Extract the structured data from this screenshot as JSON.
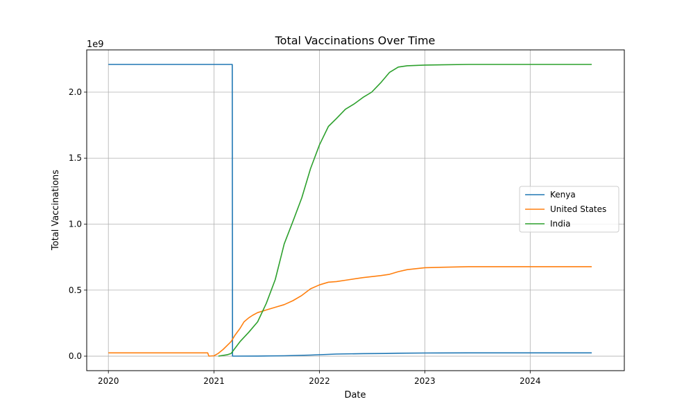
{
  "chart_data": {
    "type": "line",
    "title": "Total Vaccinations Over Time",
    "xlabel": "Date",
    "ylabel": "Total Vaccinations",
    "y_offset_text": "1e9",
    "x_ticks": [
      "2020",
      "2021",
      "2022",
      "2023",
      "2024"
    ],
    "x_tick_values": [
      "2020-01-01",
      "2021-01-01",
      "2022-01-01",
      "2023-01-01",
      "2024-01-01"
    ],
    "y_ticks": [
      "0.0",
      "0.5",
      "1.0",
      "1.5",
      "2.0"
    ],
    "y_tick_values": [
      0,
      0.5,
      1.0,
      1.5,
      2.0
    ],
    "xlim": [
      "2019-10-18",
      "2024-11-22"
    ],
    "ylim": [
      -0.11,
      2.32
    ],
    "y_scale": "1e9",
    "grid": true,
    "legend": "center-right",
    "series": [
      {
        "name": "Kenya",
        "color": "#1f77b4",
        "points": [
          [
            "2020-01-01",
            2.21
          ],
          [
            "2021-03-05",
            2.21
          ],
          [
            "2021-03-06",
            0.0
          ],
          [
            "2021-06-01",
            0.001
          ],
          [
            "2021-09-01",
            0.003
          ],
          [
            "2021-12-01",
            0.008
          ],
          [
            "2022-03-01",
            0.016
          ],
          [
            "2022-06-01",
            0.019
          ],
          [
            "2022-08-20",
            0.02
          ],
          [
            "2022-10-01",
            0.022
          ],
          [
            "2023-01-01",
            0.024
          ],
          [
            "2023-06-01",
            0.025
          ],
          [
            "2024-01-01",
            0.025
          ],
          [
            "2024-08-01",
            0.025
          ]
        ]
      },
      {
        "name": "United States",
        "color": "#ff7f0e",
        "points": [
          [
            "2020-01-01",
            0.025
          ],
          [
            "2020-12-10",
            0.025
          ],
          [
            "2020-12-14",
            0.0
          ],
          [
            "2021-01-01",
            0.003
          ],
          [
            "2021-01-15",
            0.02
          ],
          [
            "2021-02-01",
            0.05
          ],
          [
            "2021-02-15",
            0.08
          ],
          [
            "2021-03-01",
            0.11
          ],
          [
            "2021-03-15",
            0.16
          ],
          [
            "2021-04-01",
            0.21
          ],
          [
            "2021-04-15",
            0.26
          ],
          [
            "2021-05-01",
            0.29
          ],
          [
            "2021-05-15",
            0.31
          ],
          [
            "2021-06-01",
            0.33
          ],
          [
            "2021-07-01",
            0.35
          ],
          [
            "2021-08-01",
            0.37
          ],
          [
            "2021-09-01",
            0.39
          ],
          [
            "2021-10-01",
            0.42
          ],
          [
            "2021-11-01",
            0.46
          ],
          [
            "2021-12-01",
            0.51
          ],
          [
            "2022-01-01",
            0.54
          ],
          [
            "2022-02-01",
            0.56
          ],
          [
            "2022-03-01",
            0.565
          ],
          [
            "2022-04-01",
            0.575
          ],
          [
            "2022-06-01",
            0.595
          ],
          [
            "2022-08-01",
            0.61
          ],
          [
            "2022-09-01",
            0.62
          ],
          [
            "2022-10-01",
            0.64
          ],
          [
            "2022-11-01",
            0.655
          ],
          [
            "2023-01-01",
            0.67
          ],
          [
            "2023-06-01",
            0.678
          ],
          [
            "2024-01-01",
            0.678
          ],
          [
            "2024-08-01",
            0.678
          ]
        ]
      },
      {
        "name": "India",
        "color": "#2ca02c",
        "points": [
          [
            "2021-01-16",
            0.0
          ],
          [
            "2021-02-15",
            0.01
          ],
          [
            "2021-03-01",
            0.02
          ],
          [
            "2021-04-01",
            0.11
          ],
          [
            "2021-05-01",
            0.18
          ],
          [
            "2021-06-01",
            0.26
          ],
          [
            "2021-07-01",
            0.4
          ],
          [
            "2021-08-01",
            0.58
          ],
          [
            "2021-09-01",
            0.85
          ],
          [
            "2021-10-01",
            1.02
          ],
          [
            "2021-11-01",
            1.2
          ],
          [
            "2021-12-01",
            1.42
          ],
          [
            "2022-01-01",
            1.6
          ],
          [
            "2022-02-01",
            1.74
          ],
          [
            "2022-03-01",
            1.8
          ],
          [
            "2022-04-01",
            1.87
          ],
          [
            "2022-05-01",
            1.91
          ],
          [
            "2022-06-01",
            1.96
          ],
          [
            "2022-07-01",
            2.0
          ],
          [
            "2022-08-01",
            2.07
          ],
          [
            "2022-09-01",
            2.15
          ],
          [
            "2022-10-01",
            2.19
          ],
          [
            "2022-11-01",
            2.2
          ],
          [
            "2023-01-01",
            2.205
          ],
          [
            "2023-06-01",
            2.21
          ],
          [
            "2024-01-01",
            2.21
          ],
          [
            "2024-08-01",
            2.21
          ]
        ]
      }
    ]
  }
}
